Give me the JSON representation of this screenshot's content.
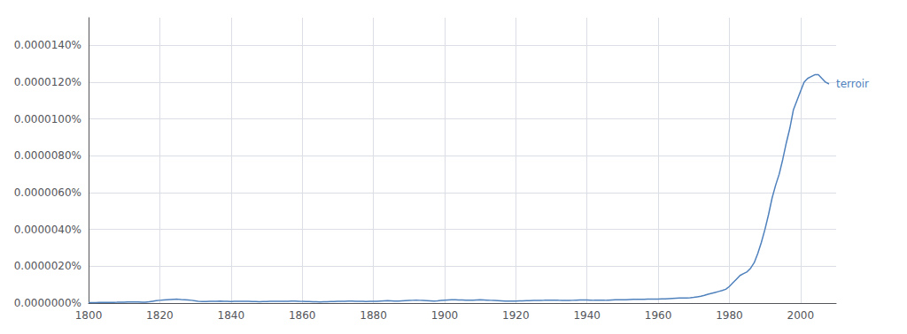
{
  "chart_data": {
    "type": "line",
    "color": "#4f81bd",
    "annotations": [
      {
        "text": "terroir"
      }
    ],
    "grid": true,
    "xlim": [
      1800,
      2010
    ],
    "xticks": [
      1800,
      1820,
      1840,
      1860,
      1880,
      1900,
      1920,
      1940,
      1960,
      1980,
      2000
    ],
    "ylim": [
      0,
      1.55e-07
    ],
    "yticks": [
      {
        "value": 0,
        "label": "0.0000000%"
      },
      {
        "value": 2e-08,
        "label": "0.0000020%"
      },
      {
        "value": 4e-08,
        "label": "0.0000040%"
      },
      {
        "value": 6e-08,
        "label": "0.0000060%"
      },
      {
        "value": 8e-08,
        "label": "0.0000080%"
      },
      {
        "value": 1e-07,
        "label": "0.0000100%"
      },
      {
        "value": 1.2e-07,
        "label": "0.0000120%"
      },
      {
        "value": 1.4e-07,
        "label": "0.0000140%"
      }
    ],
    "x": [
      1800,
      1801,
      1802,
      1803,
      1804,
      1805,
      1806,
      1807,
      1808,
      1809,
      1810,
      1811,
      1812,
      1813,
      1814,
      1815,
      1816,
      1817,
      1818,
      1819,
      1820,
      1821,
      1822,
      1823,
      1824,
      1825,
      1826,
      1827,
      1828,
      1829,
      1830,
      1831,
      1832,
      1833,
      1834,
      1835,
      1836,
      1837,
      1838,
      1839,
      1840,
      1841,
      1842,
      1843,
      1844,
      1845,
      1846,
      1847,
      1848,
      1849,
      1850,
      1851,
      1852,
      1853,
      1854,
      1855,
      1856,
      1857,
      1858,
      1859,
      1860,
      1861,
      1862,
      1863,
      1864,
      1865,
      1866,
      1867,
      1868,
      1869,
      1870,
      1871,
      1872,
      1873,
      1874,
      1875,
      1876,
      1877,
      1878,
      1879,
      1880,
      1881,
      1882,
      1883,
      1884,
      1885,
      1886,
      1887,
      1888,
      1889,
      1890,
      1891,
      1892,
      1893,
      1894,
      1895,
      1896,
      1897,
      1898,
      1899,
      1900,
      1901,
      1902,
      1903,
      1904,
      1905,
      1906,
      1907,
      1908,
      1909,
      1910,
      1911,
      1912,
      1913,
      1914,
      1915,
      1916,
      1917,
      1918,
      1919,
      1920,
      1921,
      1922,
      1923,
      1924,
      1925,
      1926,
      1927,
      1928,
      1929,
      1930,
      1931,
      1932,
      1933,
      1934,
      1935,
      1936,
      1937,
      1938,
      1939,
      1940,
      1941,
      1942,
      1943,
      1944,
      1945,
      1946,
      1947,
      1948,
      1949,
      1950,
      1951,
      1952,
      1953,
      1954,
      1955,
      1956,
      1957,
      1958,
      1959,
      1960,
      1961,
      1962,
      1963,
      1964,
      1965,
      1966,
      1967,
      1968,
      1969,
      1970,
      1971,
      1972,
      1973,
      1974,
      1975,
      1976,
      1977,
      1978,
      1979,
      1980,
      1981,
      1982,
      1983,
      1984,
      1985,
      1986,
      1987,
      1988,
      1989,
      1990,
      1991,
      1992,
      1993,
      1994,
      1995,
      1996,
      1997,
      1998,
      1999,
      2000,
      2001,
      2002,
      2003,
      2004,
      2005,
      2006,
      2007,
      2008
    ],
    "values": [
      3e-10,
      2.5e-10,
      2.8e-10,
      3e-10,
      3.2e-10,
      3.5e-10,
      3.8e-10,
      4e-10,
      4.2e-10,
      4.5e-10,
      5e-10,
      5.5e-10,
      5.8e-10,
      6e-10,
      5.5e-10,
      5e-10,
      4.5e-10,
      7e-10,
      1e-09,
      1.3e-09,
      1.5e-09,
      1.7e-09,
      1.8e-09,
      1.9e-09,
      2e-09,
      2.1e-09,
      1.9e-09,
      1.8e-09,
      1.7e-09,
      1.5e-09,
      1.2e-09,
      9e-10,
      8e-10,
      8.5e-10,
      9e-10,
      9.5e-10,
      1e-09,
      1.1e-09,
      1e-09,
      9.5e-10,
      8.5e-10,
      9e-10,
      9.5e-10,
      1e-09,
      9.5e-10,
      9e-10,
      8.5e-10,
      8e-10,
      7.5e-10,
      8e-10,
      8.5e-10,
      9e-10,
      9.5e-10,
      1e-09,
      9.5e-10,
      1e-09,
      1e-09,
      1.1e-09,
      1.1e-09,
      1e-09,
      9e-10,
      8.5e-10,
      8e-10,
      7.5e-10,
      7e-10,
      6.5e-10,
      7e-10,
      7.5e-10,
      8e-10,
      8.5e-10,
      9e-10,
      9.5e-10,
      1e-09,
      1.1e-09,
      1.1e-09,
      1e-09,
      9.5e-10,
      9e-10,
      8.5e-10,
      9e-10,
      9.5e-10,
      1e-09,
      1.1e-09,
      1.2e-09,
      1.3e-09,
      1.2e-09,
      1.1e-09,
      1.1e-09,
      1.2e-09,
      1.3e-09,
      1.4e-09,
      1.5e-09,
      1.6e-09,
      1.5e-09,
      1.4e-09,
      1.3e-09,
      1.2e-09,
      1.1e-09,
      1.2e-09,
      1.4e-09,
      1.6e-09,
      1.7e-09,
      1.8e-09,
      1.75e-09,
      1.7e-09,
      1.65e-09,
      1.6e-09,
      1.55e-09,
      1.6e-09,
      1.7e-09,
      1.8e-09,
      1.7e-09,
      1.6e-09,
      1.5e-09,
      1.4e-09,
      1.3e-09,
      1.2e-09,
      1.1e-09,
      1.1e-09,
      1.1e-09,
      1.1e-09,
      1.2e-09,
      1.2e-09,
      1.3e-09,
      1.3e-09,
      1.4e-09,
      1.4e-09,
      1.4e-09,
      1.5e-09,
      1.5e-09,
      1.5e-09,
      1.5e-09,
      1.5e-09,
      1.4e-09,
      1.4e-09,
      1.4e-09,
      1.5e-09,
      1.6e-09,
      1.7e-09,
      1.7e-09,
      1.7e-09,
      1.6e-09,
      1.5e-09,
      1.5e-09,
      1.5e-09,
      1.5e-09,
      1.6e-09,
      1.7e-09,
      1.8e-09,
      1.8e-09,
      1.8e-09,
      1.8e-09,
      1.9e-09,
      2e-09,
      2e-09,
      2e-09,
      2e-09,
      2.1e-09,
      2.1e-09,
      2.2e-09,
      2.2e-09,
      2.3e-09,
      2.3e-09,
      2.4e-09,
      2.5e-09,
      2.6e-09,
      2.7e-09,
      2.8e-09,
      2.8e-09,
      2.9e-09,
      3.1e-09,
      3.4e-09,
      3.7e-09,
      4.2e-09,
      4.8e-09,
      5.3e-09,
      5.8e-09,
      6.3e-09,
      6.8e-09,
      7.5e-09,
      9e-09,
      1.1e-08,
      1.3e-08,
      1.5e-08,
      1.6e-08,
      1.7e-08,
      1.9e-08,
      2.2e-08,
      2.7e-08,
      3.3e-08,
      4e-08,
      4.8e-08,
      5.7e-08,
      6.4e-08,
      7e-08,
      7.8e-08,
      8.7e-08,
      9.5e-08,
      1.05e-07,
      1.1e-07,
      1.15e-07,
      1.2e-07,
      1.22e-07,
      1.23e-07,
      1.24e-07,
      1.24e-07,
      1.22e-07,
      1.2e-07,
      1.19e-07
    ]
  }
}
